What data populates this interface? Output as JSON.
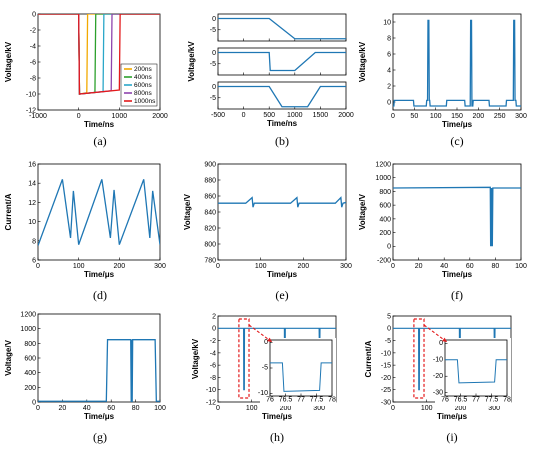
{
  "chart_data": [
    {
      "id": "a",
      "caption": "(a)",
      "type": "line",
      "xlabel": "Time/ns",
      "ylabel": "Voltage/kV",
      "xlim": [
        -1000,
        2000
      ],
      "ylim": [
        -12,
        0
      ],
      "xticks": [
        "-1000",
        "0",
        "1000",
        "2000"
      ],
      "yticks": [
        "0",
        "-2",
        "-4",
        "-6",
        "-8",
        "-10",
        "-12"
      ],
      "legend_position": "center-right",
      "series": [
        {
          "name": "200ns",
          "color": "#F2A900",
          "x": [
            -1000,
            0,
            20,
            200,
            220,
            2000
          ],
          "y": [
            0,
            0,
            -10,
            -9.85,
            0,
            0
          ]
        },
        {
          "name": "400ns",
          "color": "#2CA02C",
          "x": [
            -1000,
            0,
            20,
            400,
            420,
            2000
          ],
          "y": [
            0,
            0,
            -10,
            -9.8,
            0,
            0
          ]
        },
        {
          "name": "600ns",
          "color": "#2AA7C9",
          "x": [
            -1000,
            0,
            20,
            600,
            620,
            2000
          ],
          "y": [
            0,
            0,
            -10,
            -9.7,
            0,
            0
          ]
        },
        {
          "name": "800ns",
          "color": "#8E44AD",
          "x": [
            -1000,
            0,
            20,
            800,
            820,
            2000
          ],
          "y": [
            0,
            0,
            -10,
            -9.6,
            0,
            0
          ]
        },
        {
          "name": "1000ns",
          "color": "#E31A1C",
          "x": [
            -1000,
            0,
            20,
            1000,
            1020,
            2000
          ],
          "y": [
            0,
            0,
            -10,
            -9.5,
            0,
            0
          ]
        }
      ]
    },
    {
      "id": "b",
      "caption": "(b)",
      "type": "line",
      "xlabel": "Time/ns",
      "ylabel": "Voltage/kV",
      "xlim": [
        -500,
        2000
      ],
      "xticks": [
        "-500",
        "0",
        "500",
        "1000",
        "1500",
        "2000"
      ],
      "panels": [
        {
          "ylim": [
            -10,
            2
          ],
          "yticks": [
            "0",
            "-5"
          ],
          "series": [
            {
              "color": "#1F77B4",
              "x": [
                -500,
                500,
                1000,
                1500,
                2000
              ],
              "y": [
                0,
                0,
                -9,
                -9,
                -9
              ]
            }
          ]
        },
        {
          "ylim": [
            -10,
            2
          ],
          "yticks": [
            "0",
            "-5"
          ],
          "series": [
            {
              "color": "#1F77B4",
              "x": [
                -500,
                500,
                520,
                1000,
                1400,
                2000
              ],
              "y": [
                0,
                0,
                -8,
                -8,
                0,
                0
              ]
            }
          ]
        },
        {
          "ylim": [
            -10,
            2
          ],
          "yticks": [
            "0",
            "-5"
          ],
          "series": [
            {
              "color": "#1F77B4",
              "x": [
                -500,
                500,
                750,
                1250,
                1500,
                2000
              ],
              "y": [
                0,
                0,
                -9,
                -9,
                0,
                0
              ]
            }
          ]
        }
      ]
    },
    {
      "id": "c",
      "caption": "(c)",
      "type": "line",
      "xlabel": "Time/μs",
      "ylabel": "Voltage/kV",
      "xlim": [
        0,
        300
      ],
      "ylim": [
        -1,
        11
      ],
      "xticks": [
        "0",
        "50",
        "100",
        "150",
        "200",
        "250",
        "300"
      ],
      "yticks": [
        "0",
        "2",
        "4",
        "6",
        "8",
        "10"
      ],
      "series": [
        {
          "color": "#1F77B4",
          "x": [
            0,
            2,
            3,
            48,
            49,
            78,
            79,
            81,
            82,
            84,
            85,
            86,
            87,
            125,
            126,
            168,
            169,
            181,
            182,
            184,
            185,
            187,
            188,
            225,
            226,
            265,
            266,
            282,
            283,
            285,
            286,
            288,
            289,
            300
          ],
          "y": [
            -0.5,
            -0.5,
            0.2,
            0.2,
            -0.5,
            -0.5,
            0.2,
            0.2,
            10.2,
            10.2,
            0.2,
            0.2,
            -0.5,
            -0.5,
            0.2,
            0.2,
            -0.5,
            -0.5,
            10.2,
            10.2,
            -0.5,
            -0.5,
            0.2,
            0.2,
            -0.5,
            -0.5,
            0.2,
            0.2,
            10.2,
            10.2,
            0.2,
            0.2,
            -0.5,
            -0.5
          ]
        }
      ]
    },
    {
      "id": "d",
      "caption": "(d)",
      "type": "line",
      "xlabel": "Time/μs",
      "ylabel": "Current/A",
      "xlim": [
        0,
        300
      ],
      "ylim": [
        6,
        16
      ],
      "xticks": [
        "0",
        "100",
        "200",
        "300"
      ],
      "yticks": [
        "6",
        "8",
        "10",
        "12",
        "14",
        "16"
      ],
      "series": [
        {
          "color": "#1F77B4",
          "x": [
            0,
            60,
            80,
            87,
            100,
            157,
            178,
            187,
            200,
            260,
            275,
            282,
            300
          ],
          "y": [
            7.5,
            14.4,
            8.3,
            13.2,
            7.6,
            14.4,
            8.3,
            13.3,
            7.6,
            14.4,
            8.3,
            13.2,
            7.6
          ]
        }
      ]
    },
    {
      "id": "e",
      "caption": "(e)",
      "type": "line",
      "xlabel": "Time/μs",
      "ylabel": "Voltage/V",
      "xlim": [
        0,
        300
      ],
      "ylim": [
        780,
        900
      ],
      "xticks": [
        "0",
        "100",
        "200",
        "300"
      ],
      "yticks": [
        "780",
        "800",
        "820",
        "840",
        "860",
        "880",
        "900"
      ],
      "series": [
        {
          "color": "#1F77B4",
          "x": [
            0,
            65,
            80,
            82,
            85,
            170,
            185,
            187,
            190,
            275,
            288,
            290,
            293,
            300
          ],
          "y": [
            851,
            851,
            858,
            846,
            851,
            851,
            858,
            846,
            851,
            851,
            858,
            846,
            851,
            852
          ]
        }
      ]
    },
    {
      "id": "f",
      "caption": "(f)",
      "type": "line",
      "xlabel": "Time/μs",
      "ylabel": "Voltage/V",
      "xlim": [
        0,
        100
      ],
      "ylim": [
        -200,
        1200
      ],
      "xticks": [
        "0",
        "20",
        "40",
        "60",
        "80",
        "100"
      ],
      "yticks": [
        "-200",
        "0",
        "200",
        "400",
        "600",
        "800",
        "1000",
        "1200"
      ],
      "series": [
        {
          "color": "#1F77B4",
          "x": [
            0,
            76,
            76.3,
            76.6,
            77,
            77.3,
            77.6,
            78,
            100
          ],
          "y": [
            850,
            860,
            0,
            850,
            0,
            850,
            0,
            850,
            850
          ]
        }
      ]
    },
    {
      "id": "g",
      "caption": "(g)",
      "type": "line",
      "xlabel": "Time/μs",
      "ylabel": "Voltage/V",
      "xlim": [
        0,
        100
      ],
      "ylim": [
        0,
        1200
      ],
      "xticks": [
        "0",
        "20",
        "40",
        "60",
        "80",
        "100"
      ],
      "yticks": [
        "0",
        "200",
        "400",
        "600",
        "800",
        "1000",
        "1200"
      ],
      "series": [
        {
          "color": "#1F77B4",
          "x": [
            0,
            56,
            57,
            76,
            76.4,
            76.8,
            77.2,
            77.6,
            78,
            96,
            97,
            100
          ],
          "y": [
            10,
            10,
            850,
            850,
            0,
            850,
            0,
            850,
            850,
            850,
            10,
            10
          ]
        }
      ]
    },
    {
      "id": "h",
      "caption": "(h)",
      "type": "line",
      "xlabel": "Time/μs",
      "ylabel": "Voltage/kV",
      "xlim": [
        0,
        350
      ],
      "ylim": [
        -12,
        2
      ],
      "xticks": [
        "0",
        "100",
        "200",
        "300"
      ],
      "yticks": [
        "2",
        "0",
        "-2",
        "-4",
        "-6",
        "-8",
        "-10",
        "-12"
      ],
      "series": [
        {
          "color": "#1F77B4",
          "x": [
            0,
            76,
            76.5,
            78,
            78.5,
            197,
            197.5,
            199,
            199.5,
            300,
            300.5,
            302,
            302.5,
            350
          ],
          "y": [
            0,
            0,
            -10,
            -10,
            0,
            0,
            -10,
            -10,
            0,
            0,
            -2.5,
            -2.5,
            0,
            0
          ]
        }
      ],
      "inset": {
        "xlim": [
          76,
          78
        ],
        "ylim": [
          -10.5,
          0.5
        ],
        "xticks": [
          "76",
          "76.5",
          "77",
          "77.5",
          "78"
        ],
        "yticks": [
          "0",
          "-5",
          "-10"
        ],
        "series": [
          {
            "color": "#1F77B4",
            "x": [
              76,
              76.4,
              76.45,
              77.6,
              77.65,
              78
            ],
            "y": [
              -4,
              -4,
              -9.6,
              -9.4,
              -4,
              -4
            ]
          }
        ]
      }
    },
    {
      "id": "i",
      "caption": "(i)",
      "type": "line",
      "xlabel": "Time/μs",
      "ylabel": "Current/A",
      "xlim": [
        0,
        350
      ],
      "ylim": [
        -30,
        5
      ],
      "xticks": [
        "0",
        "100",
        "200",
        "300"
      ],
      "yticks": [
        "5",
        "0",
        "-5",
        "-10",
        "-15",
        "-20",
        "-25",
        "-30"
      ],
      "series": [
        {
          "color": "#1F77B4",
          "x": [
            0,
            76,
            76.5,
            78,
            78.5,
            197,
            197.5,
            199,
            199.5,
            300,
            300.5,
            302,
            302.5,
            350
          ],
          "y": [
            0,
            0,
            -25,
            -25,
            0,
            0,
            -25,
            -25,
            0,
            0,
            -6,
            -6,
            0,
            0
          ]
        }
      ],
      "inset": {
        "xlim": [
          76,
          78
        ],
        "ylim": [
          -32,
          2
        ],
        "xticks": [
          "76",
          "76.5",
          "77",
          "77.5",
          "78"
        ],
        "yticks": [
          "0",
          "-10",
          "-20",
          "-30"
        ],
        "series": [
          {
            "color": "#1F77B4",
            "x": [
              76,
              76.4,
              76.45,
              77.6,
              77.65,
              78
            ],
            "y": [
              -10,
              -10,
              -24,
              -23.5,
              -10,
              -10
            ]
          }
        ]
      }
    }
  ]
}
